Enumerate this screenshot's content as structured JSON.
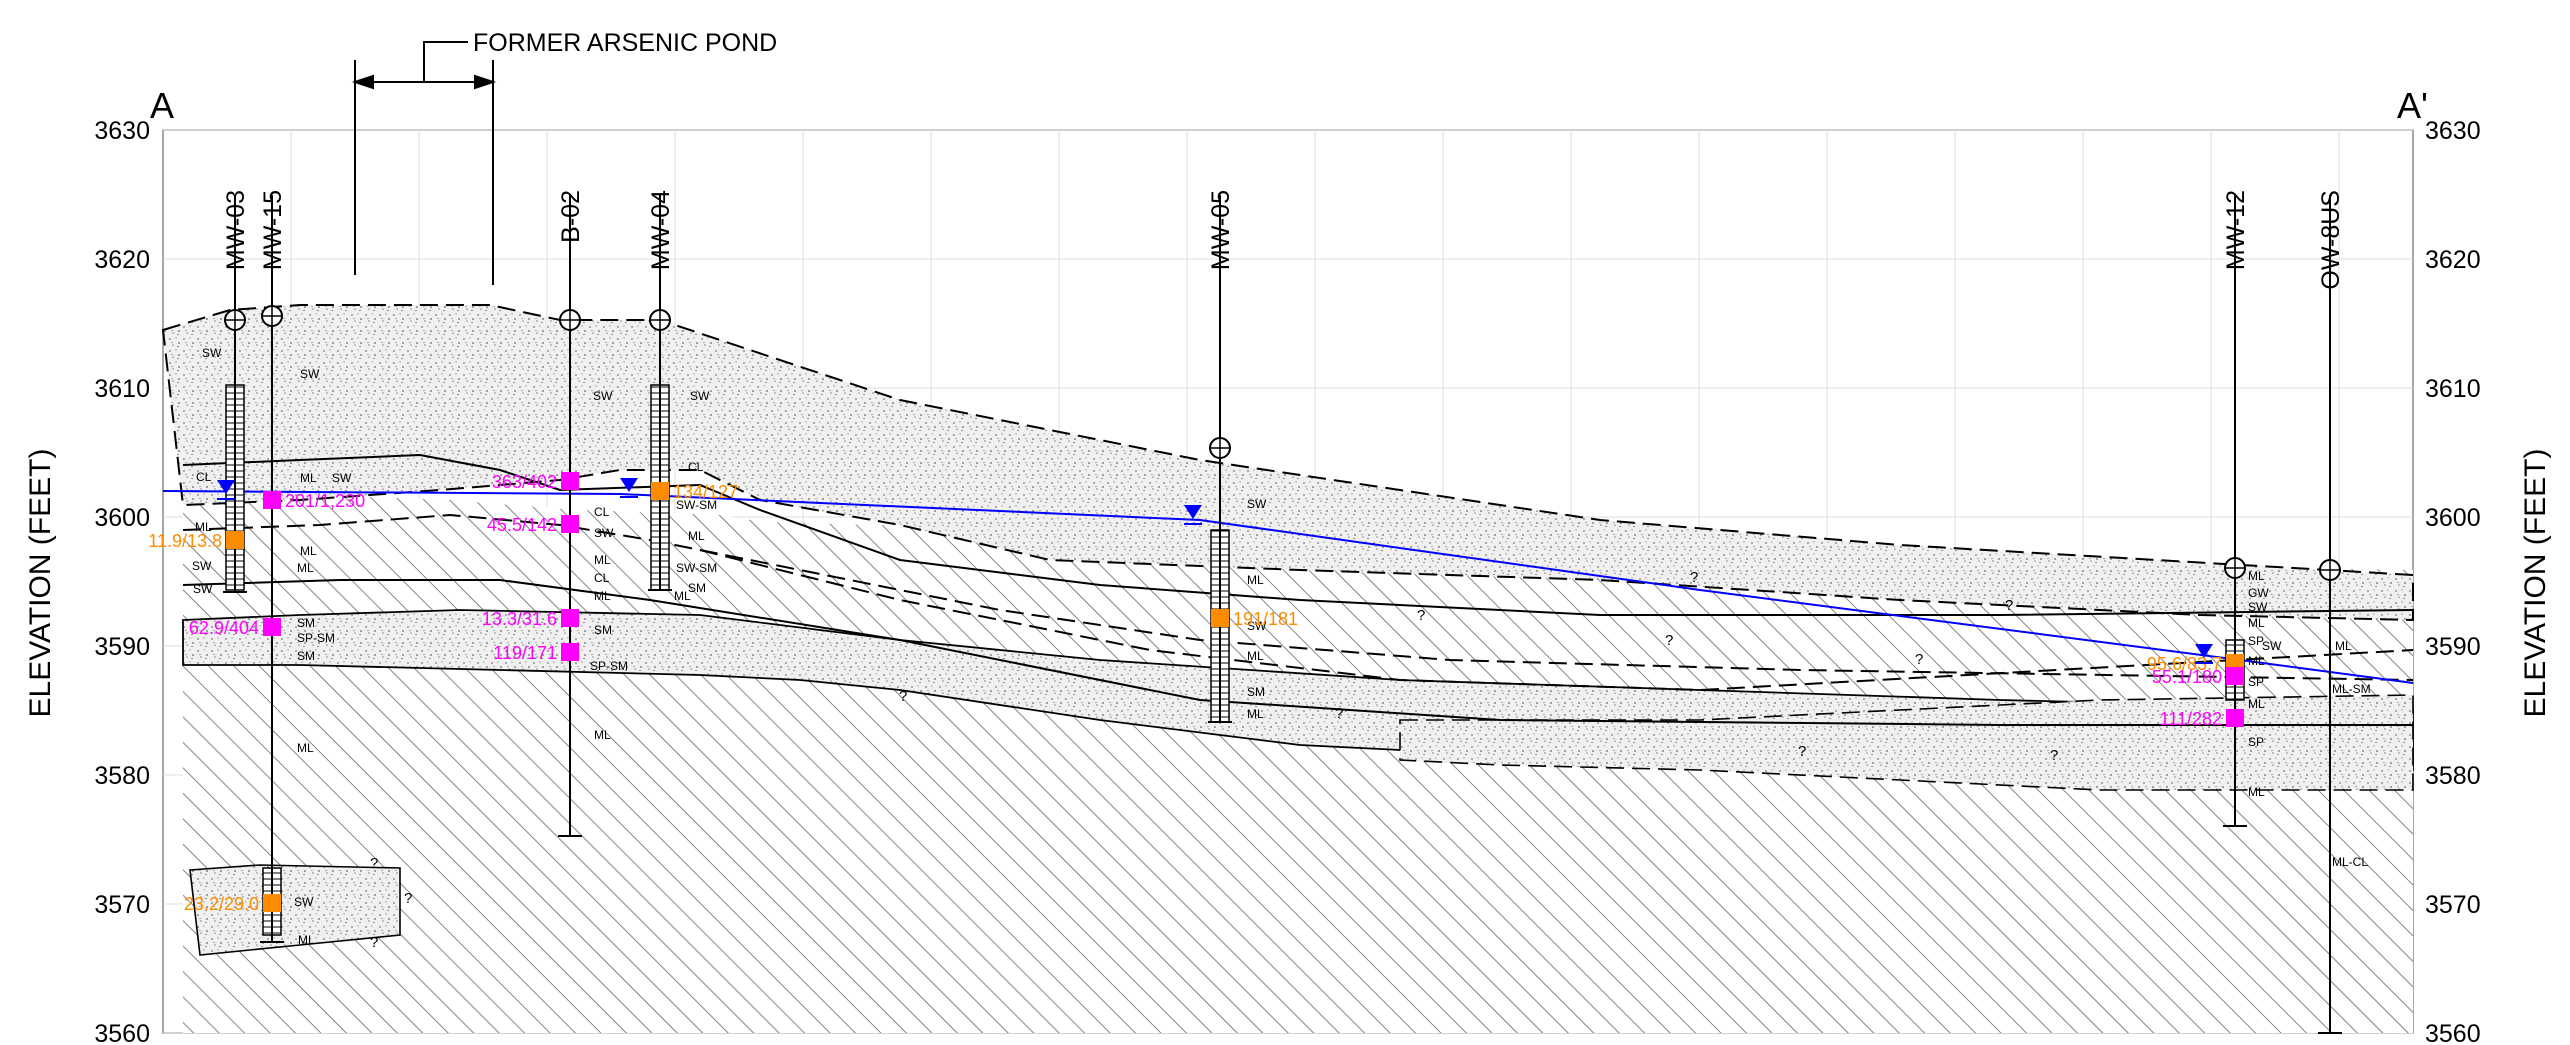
{
  "section": {
    "corner_left": "A",
    "corner_right": "A'",
    "ylabel": "ELEVATION (FEET)",
    "pond_label": "FORMER ARSENIC POND",
    "colors": {
      "magenta": "#ff00ff",
      "orange": "#ff8c00",
      "water": "#0000ff"
    }
  },
  "axis": {
    "yticks": [
      3630,
      3620,
      3610,
      3600,
      3590,
      3580,
      3570,
      3560
    ],
    "ylim": [
      3560,
      3630
    ]
  },
  "wells": [
    "MW-03",
    "MW-15",
    "B-02",
    "MW-04",
    "MW-05",
    "MW-12",
    "OW-8US"
  ],
  "soil": [
    "SW",
    "SW",
    "CL",
    "ML",
    "SW",
    "SW",
    "ML",
    "SW",
    "ML",
    "ML",
    "SM",
    "SP-SM",
    "SM",
    "ML",
    "SW",
    "ML",
    "SW",
    "CL",
    "SW",
    "ML",
    "CL",
    "ML",
    "SM",
    "SP-SM",
    "ML",
    "SW",
    "CL",
    "SW-SM",
    "ML",
    "SW-SM",
    "SM",
    "ML",
    "SW",
    "ML",
    "SW",
    "ML",
    "SM",
    "ML",
    "ML",
    "GW",
    "SW",
    "ML",
    "SP",
    "ML",
    "SP",
    "ML",
    "SP",
    "ML",
    "ML-SM",
    "ML-CL",
    "ML",
    "SW"
  ],
  "samples": [
    {
      "label": "201/1,230",
      "color": "magenta"
    },
    {
      "label": "11.9/13.8",
      "color": "orange"
    },
    {
      "label": "62.9/404",
      "color": "magenta"
    },
    {
      "label": "23.2/29.0",
      "color": "orange"
    },
    {
      "label": "363/402",
      "color": "magenta"
    },
    {
      "label": "45.5/142",
      "color": "magenta"
    },
    {
      "label": "13.3/31.6",
      "color": "magenta"
    },
    {
      "label": "119/171",
      "color": "magenta"
    },
    {
      "label": "134/127",
      "color": "orange"
    },
    {
      "label": "191/181",
      "color": "orange"
    },
    {
      "label": "95.6/83.7",
      "color": "orange"
    },
    {
      "label": "55.1/180",
      "color": "magenta"
    },
    {
      "label": "111/282",
      "color": "magenta"
    }
  ]
}
